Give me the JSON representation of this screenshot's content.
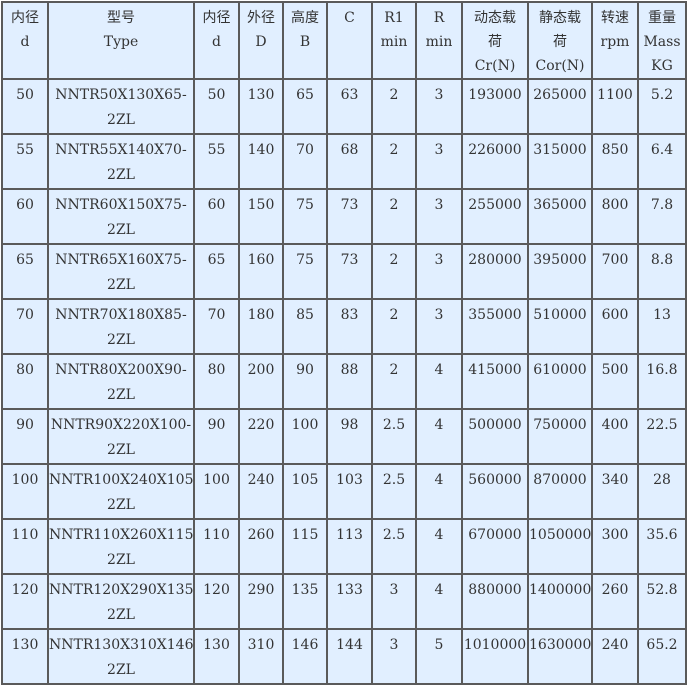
{
  "headers": [
    [
      "内径",
      "d"
    ],
    [
      "型号",
      "Type"
    ],
    [
      "内径",
      "d"
    ],
    [
      "外径",
      "D"
    ],
    [
      "高度",
      "B"
    ],
    [
      "C"
    ],
    [
      "R1",
      "min"
    ],
    [
      "R",
      "min"
    ],
    [
      "动态载",
      "荷",
      "Cr(N)"
    ],
    [
      "静态载",
      "荷",
      "Cor(N)"
    ],
    [
      "转速",
      "rpm"
    ],
    [
      "重量",
      "Mass",
      "KG"
    ]
  ],
  "rows": [
    [
      "50",
      "NNTR50X130X65-",
      "2ZL",
      "50",
      "130",
      "65",
      "63",
      "2",
      "3",
      "193000",
      "265000",
      "1100",
      "5.2"
    ],
    [
      "55",
      "NNTR55X140X70-",
      "2ZL",
      "55",
      "140",
      "70",
      "68",
      "2",
      "3",
      "226000",
      "315000",
      "850",
      "6.4"
    ],
    [
      "60",
      "NNTR60X150X75-",
      "2ZL",
      "60",
      "150",
      "75",
      "73",
      "2",
      "3",
      "255000",
      "365000",
      "800",
      "7.8"
    ],
    [
      "65",
      "NNTR65X160X75-",
      "2ZL",
      "65",
      "160",
      "75",
      "73",
      "2",
      "3",
      "280000",
      "395000",
      "700",
      "8.8"
    ],
    [
      "70",
      "NNTR70X180X85-",
      "2ZL",
      "70",
      "180",
      "85",
      "83",
      "2",
      "3",
      "355000",
      "510000",
      "600",
      "13"
    ],
    [
      "80",
      "NNTR80X200X90-",
      "2ZL",
      "80",
      "200",
      "90",
      "88",
      "2",
      "4",
      "415000",
      "610000",
      "500",
      "16.8"
    ],
    [
      "90",
      "NNTR90X220X100-",
      "2ZL",
      "90",
      "220",
      "100",
      "98",
      "2.5",
      "4",
      "500000",
      "750000",
      "400",
      "22.5"
    ],
    [
      "100",
      "NNTR100X240X105-",
      "2ZL",
      "100",
      "240",
      "105",
      "103",
      "2.5",
      "4",
      "560000",
      "870000",
      "340",
      "28"
    ],
    [
      "110",
      "NNTR110X260X115-",
      "2ZL",
      "110",
      "260",
      "115",
      "113",
      "2.5",
      "4",
      "670000",
      "1050000",
      "300",
      "35.6"
    ],
    [
      "120",
      "NNTR120X290X135-",
      "2ZL",
      "120",
      "290",
      "135",
      "133",
      "3",
      "4",
      "880000",
      "1400000",
      "260",
      "52.8"
    ],
    [
      "130",
      "NNTR130X310X146-",
      "2ZL",
      "130",
      "310",
      "146",
      "144",
      "3",
      "5",
      "1010000",
      "1630000",
      "240",
      "65.2"
    ]
  ]
}
